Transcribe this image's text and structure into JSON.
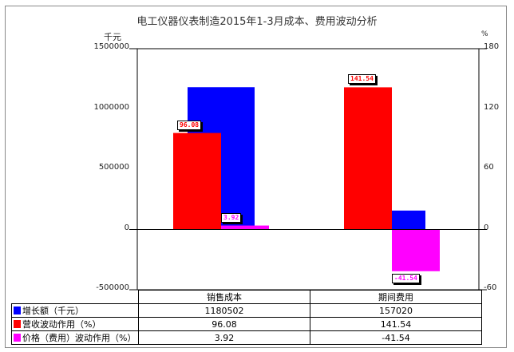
{
  "chart_data": {
    "type": "bar",
    "title": "电工仪器仪表制造2015年1-3月成本、费用波动分析",
    "ylabel_left": "千元",
    "ylabel_right": "%",
    "ylim_left": [
      -500000,
      1500000
    ],
    "ylim_right": [
      -60,
      180
    ],
    "yticks_left": [
      "1500000",
      "1000000",
      "500000",
      "0",
      "-500000"
    ],
    "yticks_right": [
      "180",
      "120",
      "60",
      "0",
      "-60"
    ],
    "categories": [
      "销售成本",
      "期间费用"
    ],
    "series": [
      {
        "name": "增长额（千元）",
        "axis": "left",
        "color": "#0000ff",
        "values": [
          1180502,
          157020
        ],
        "labels": [
          "1180502",
          "157020"
        ]
      },
      {
        "name": "营收波动作用（%）",
        "axis": "right",
        "color": "#ff0000",
        "values": [
          96.08,
          141.54
        ],
        "labels": [
          "96.08",
          "141.54"
        ]
      },
      {
        "name": "价格（费用）波动作用（%）",
        "axis": "right",
        "color": "#ff00ff",
        "values": [
          3.92,
          -41.54
        ],
        "labels": [
          "3.92",
          "-41.54"
        ]
      }
    ],
    "grid": false,
    "legend": "data-table-bottom"
  }
}
